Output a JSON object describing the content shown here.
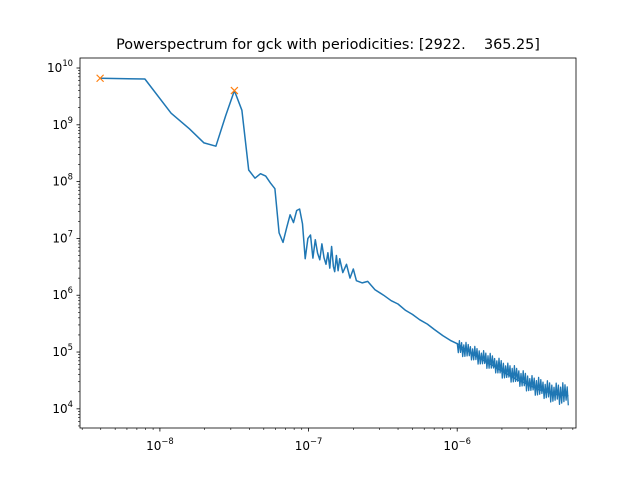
{
  "chart_data": {
    "type": "line",
    "title": "Powerspectrum for gck with periodicities: [2922.    365.25]",
    "xlabel": "",
    "ylabel": "",
    "xscale": "log",
    "yscale": "log",
    "xlim": [
      2.9e-09,
      6.3e-06
    ],
    "ylim": [
      4600.0,
      15000000000.0
    ],
    "grid": false,
    "legend": "none",
    "colors": {
      "line": "#1f77b4",
      "peaks": "#ff7f0e"
    },
    "x_ticks": [
      {
        "mantissa": "10",
        "exponent": "−8",
        "value": 1e-08
      },
      {
        "mantissa": "10",
        "exponent": "−7",
        "value": 1e-07
      },
      {
        "mantissa": "10",
        "exponent": "−6",
        "value": 1e-06
      }
    ],
    "y_ticks": [
      {
        "mantissa": "10",
        "exponent": "4",
        "value": 10000.0
      },
      {
        "mantissa": "10",
        "exponent": "5",
        "value": 100000.0
      },
      {
        "mantissa": "10",
        "exponent": "6",
        "value": 1000000.0
      },
      {
        "mantissa": "10",
        "exponent": "7",
        "value": 10000000.0
      },
      {
        "mantissa": "10",
        "exponent": "8",
        "value": 100000000.0
      },
      {
        "mantissa": "10",
        "exponent": "9",
        "value": 1000000000.0
      },
      {
        "mantissa": "10",
        "exponent": "10",
        "value": 10000000000.0
      }
    ],
    "series": [
      {
        "marker": "line",
        "x": [
          3.96e-09,
          7.92e-09,
          1.19e-08,
          1.58e-08,
          1.98e-08,
          2.38e-08,
          2.77e-08,
          3.17e-08,
          3.56e-08,
          3.96e-08,
          4.36e-08,
          4.75e-08,
          5.15e-08,
          5.54e-08,
          5.94e-08,
          6.34e-08,
          6.73e-08,
          7.13e-08,
          7.52e-08,
          7.92e-08,
          8.32e-08,
          8.71e-08,
          9.11e-08,
          9.5e-08,
          9.9e-08,
          1.03e-07,
          1.07e-07,
          1.11e-07,
          1.15e-07,
          1.19e-07,
          1.23e-07,
          1.27e-07,
          1.31e-07,
          1.35e-07,
          1.39e-07,
          1.43e-07,
          1.47e-07,
          1.5e-07,
          1.54e-07,
          1.58e-07,
          1.62e-07,
          1.7e-07,
          1.8e-07,
          1.9e-07,
          2e-07,
          2.1e-07,
          2.3e-07,
          2.5e-07,
          2.8e-07,
          3.2e-07,
          3.6e-07,
          4e-07,
          4.5e-07,
          5e-07,
          5.6e-07,
          6.3e-07,
          7e-07,
          8e-07,
          9e-07,
          1e-06,
          1.12e-06,
          1.25e-06,
          1.4e-06,
          1.6e-06,
          1.8e-06,
          2e-06,
          2.25e-06,
          2.5e-06,
          2.8e-06,
          3.15e-06,
          3.5e-06,
          4e-06,
          4.5e-06,
          5e-06,
          5.6e-06
        ],
        "y": [
          6600000000.0,
          6400000000.0,
          1600000000.0,
          850000000.0,
          480000000.0,
          420000000.0,
          1450000000.0,
          4000000000.0,
          1800000000.0,
          160000000.0,
          115000000.0,
          138000000.0,
          125000000.0,
          95000000.0,
          75000000.0,
          12500000.0,
          8500000.0,
          15500000.0,
          26000000.0,
          19000000.0,
          31000000.0,
          33000000.0,
          18000000.0,
          4400000.0,
          10000000.0,
          11500000.0,
          4500000.0,
          9500000.0,
          5500000.0,
          4200000.0,
          8000000.0,
          4600000.0,
          3500000.0,
          5600000.0,
          3000000.0,
          7200000.0,
          3200000.0,
          2600000.0,
          5000000.0,
          2700000.0,
          4400000.0,
          2500000.0,
          3500000.0,
          2000000.0,
          2900000.0,
          1800000.0,
          1650000.0,
          1750000.0,
          1250000.0,
          1000000.0,
          800000.0,
          700000.0,
          540000.0,
          460000.0,
          370000.0,
          310000.0,
          250000.0,
          195000.0,
          160000.0,
          140000.0,
          115000.0,
          95000.0,
          80000.0,
          65000.0,
          55000.0,
          46000.0,
          39000.0,
          33000.0,
          29000.0,
          25000.0,
          22000.0,
          20000.0,
          18000.0,
          17500.0,
          17000.0
        ],
        "band": {
          "x": [
            1e-06,
            1.25e-06,
            1.5e-06,
            1.8e-06,
            2e-06,
            2.5e-06,
            3e-06,
            3.5e-06,
            4e-06,
            4.5e-06,
            5e-06,
            5.6e-06
          ],
          "y_low": [
            90000.0,
            70000.0,
            55000.0,
            42000.0,
            35000.0,
            26000.0,
            20000.0,
            16000.0,
            14000.0,
            12500.0,
            11500.0,
            11000.0
          ],
          "y_high": [
            170000.0,
            135000.0,
            110000.0,
            85000.0,
            75000.0,
            55000.0,
            43000.0,
            36000.0,
            32000.0,
            30000.0,
            29000.0,
            28000.0
          ]
        }
      },
      {
        "marker": "x",
        "x": [
          3.96e-09,
          3.17e-08
        ],
        "y": [
          6600000000.0,
          4000000000.0
        ]
      }
    ]
  }
}
